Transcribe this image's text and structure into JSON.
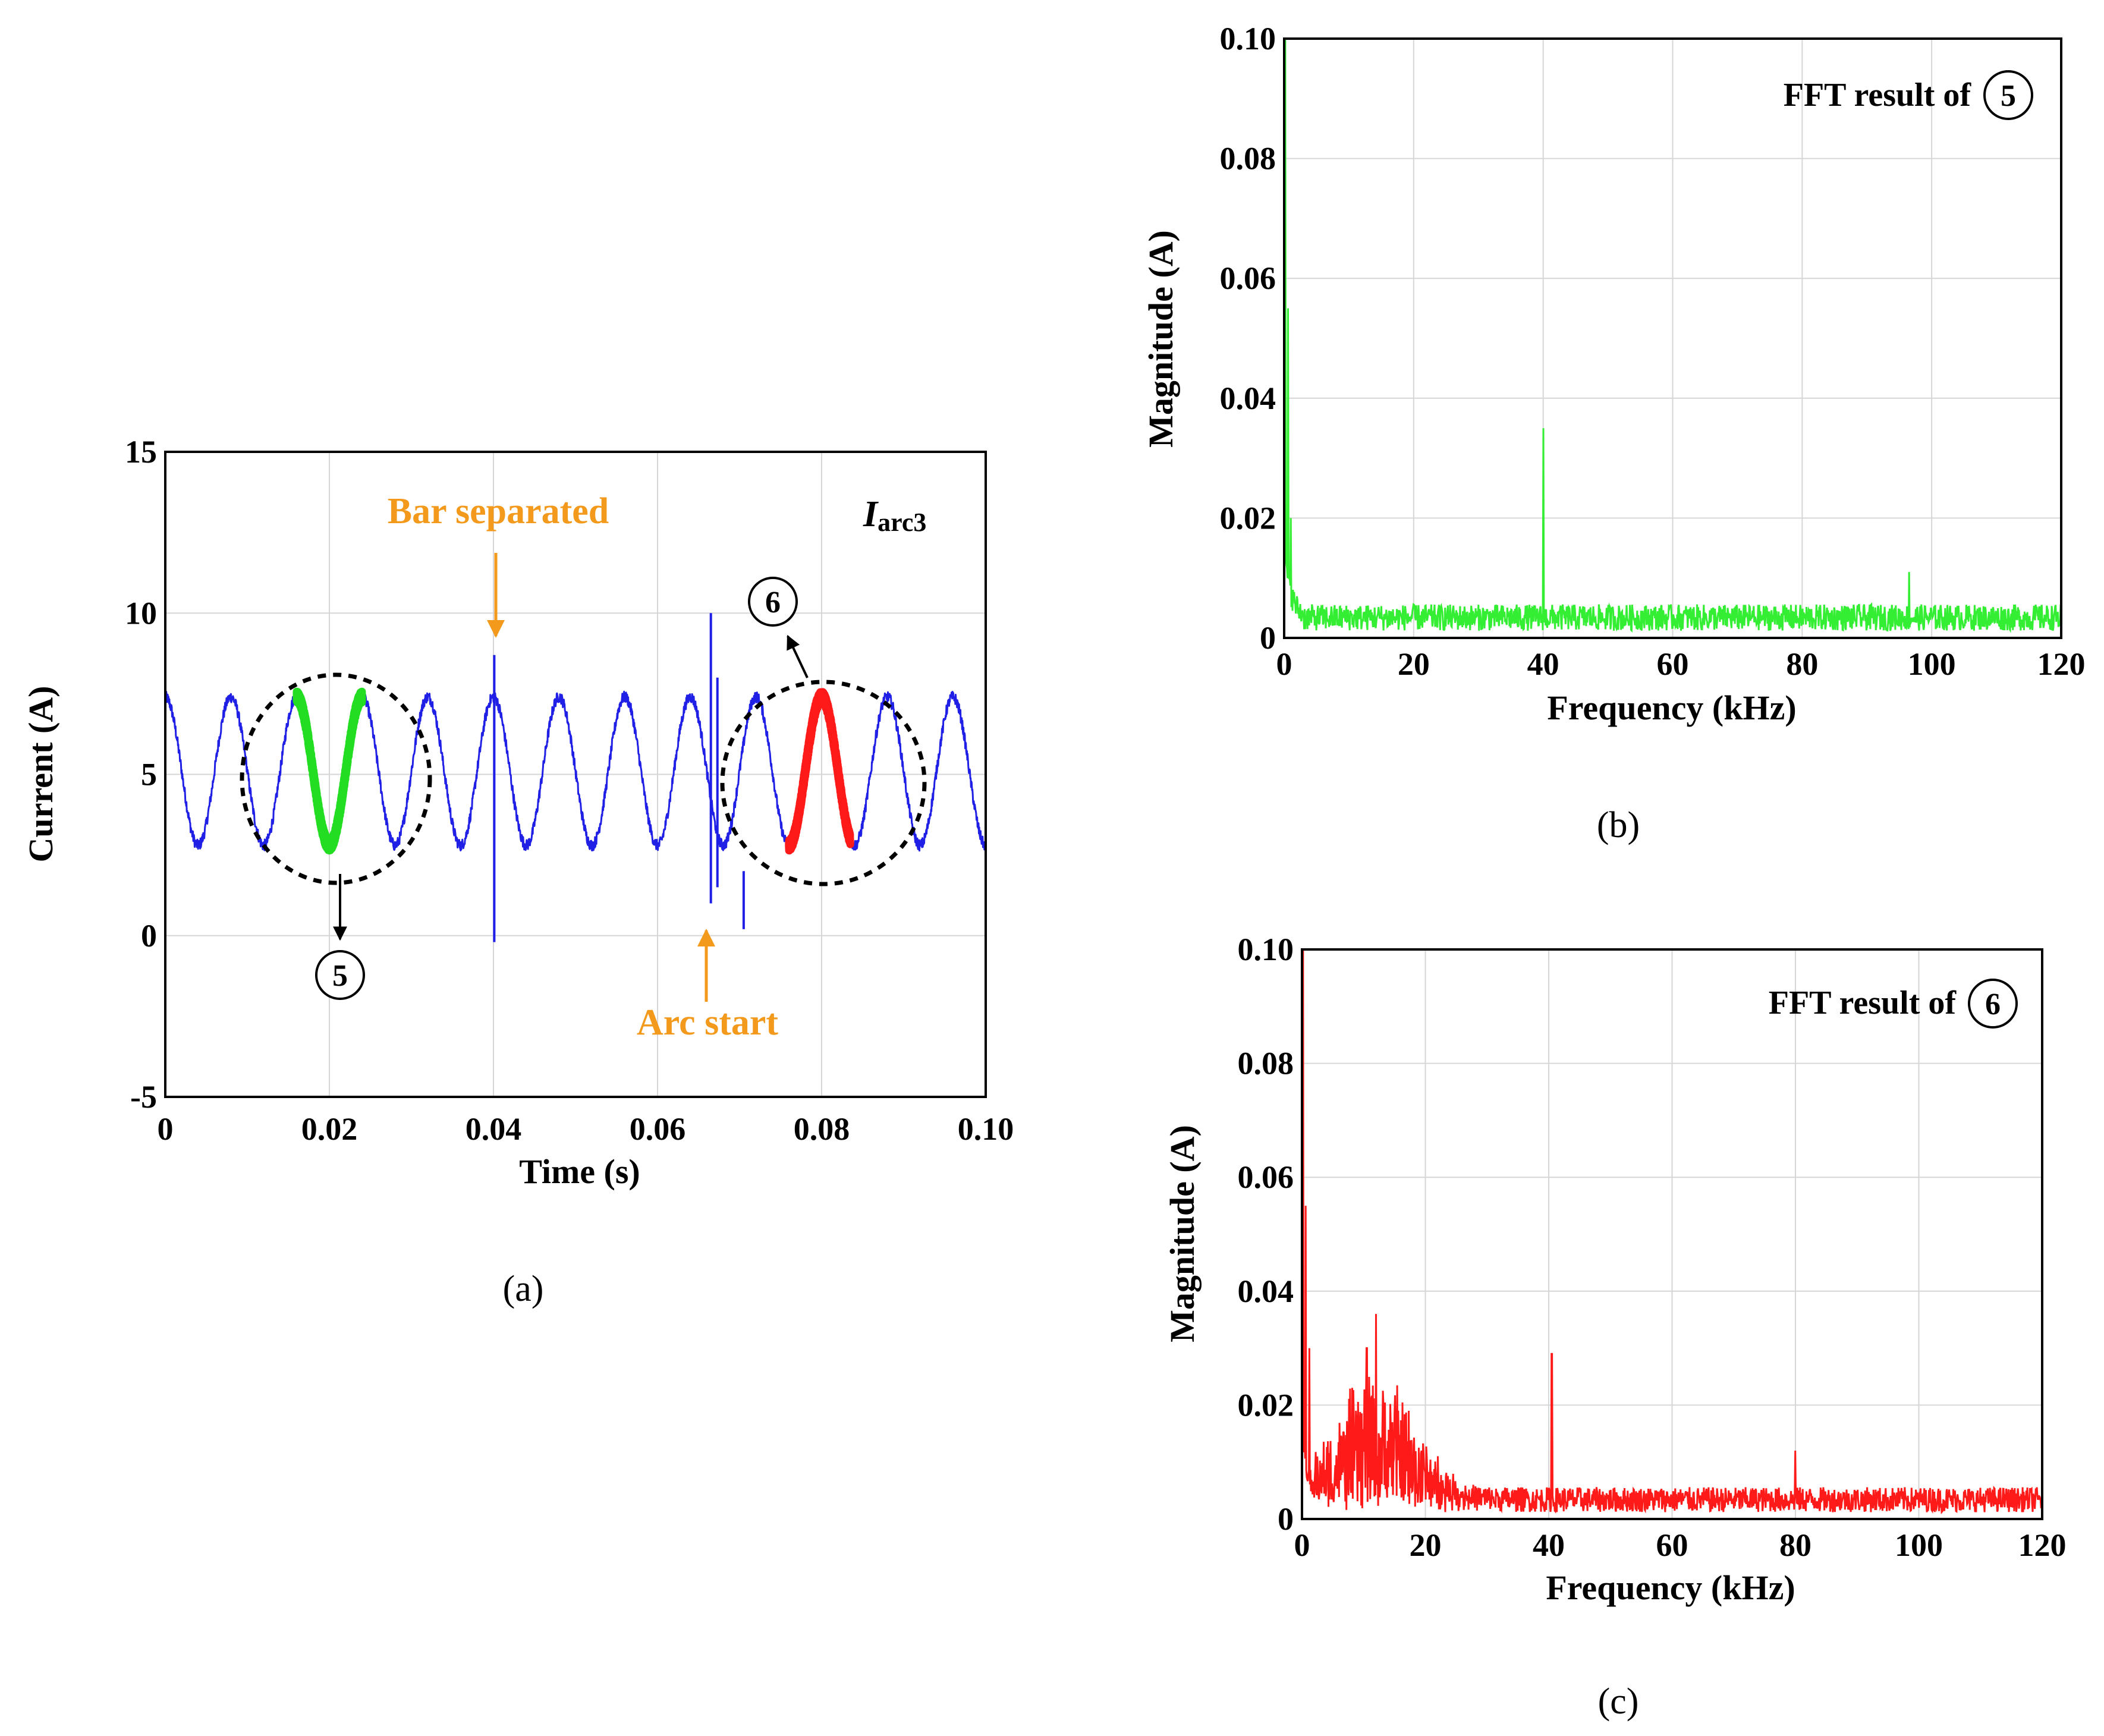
{
  "chart_data": [
    {
      "panel": "(a)",
      "type": "line",
      "title": "",
      "xlabel": "Time (s)",
      "ylabel": "Current (A)",
      "xlim": [
        0,
        0.1
      ],
      "ylim": [
        -5,
        15
      ],
      "xticks": [
        "0",
        "0.02",
        "0.04",
        "0.06",
        "0.08",
        "0.10"
      ],
      "yticks": [
        "-5",
        "0",
        "5",
        "10",
        "15"
      ],
      "grid": true,
      "signal_label": {
        "main": "I",
        "sub": "arc3"
      },
      "signal": {
        "frequency_hz": 125,
        "mean_a": 5.1,
        "amplitude_a": 2.3,
        "peak_times_s": [
          0.0001,
          0.008,
          0.016,
          0.024,
          0.032,
          0.04,
          0.048,
          0.056,
          0.064,
          0.072,
          0.08,
          0.088,
          0.096
        ],
        "spikes": [
          {
            "t": 0.0401,
            "min": -0.2,
            "max": 8.7
          },
          {
            "t": 0.0665,
            "min": 1.0,
            "max": 10.0
          },
          {
            "t": 0.0673,
            "min": 1.5,
            "max": 8.0
          },
          {
            "t": 0.0705,
            "min": 0.2,
            "max": 2.0
          }
        ]
      },
      "series": [
        {
          "name": "Iarc3",
          "color": "#1f1fe6",
          "t_range": [
            0,
            0.1
          ]
        },
        {
          "name": "segment 5",
          "color": "#22dd22",
          "t_range": [
            0.016,
            0.024
          ]
        },
        {
          "name": "segment 6",
          "color": "#ff1a1a",
          "t_range": [
            0.076,
            0.0835
          ]
        }
      ],
      "annotations": [
        {
          "text": "Bar separated",
          "color": "#f39a1d"
        },
        {
          "text": "Arc start",
          "color": "#f39a1d"
        }
      ],
      "markers": [
        "5",
        "6"
      ]
    },
    {
      "panel": "(b)",
      "type": "line",
      "title": "FFT result of",
      "marker": "5",
      "xlabel": "Frequency (kHz)",
      "ylabel": "Magnitude (A)",
      "xlim": [
        0,
        120
      ],
      "ylim": [
        0,
        0.1
      ],
      "xticks": [
        "0",
        "20",
        "40",
        "60",
        "80",
        "100",
        "120"
      ],
      "yticks": [
        "0",
        "0.02",
        "0.04",
        "0.06",
        "0.08",
        "0.10"
      ],
      "grid": true,
      "color": "#33ee33",
      "noise_floor": 0.004,
      "peaks": [
        {
          "f": 0.2,
          "mag": 0.1
        },
        {
          "f": 0.6,
          "mag": 0.055
        },
        {
          "f": 1.0,
          "mag": 0.02
        },
        {
          "f": 40.0,
          "mag": 0.035
        },
        {
          "f": 96.5,
          "mag": 0.011
        }
      ]
    },
    {
      "panel": "(c)",
      "type": "line",
      "title": "FFT result of",
      "marker": "6",
      "xlabel": "Frequency (kHz)",
      "ylabel": "Magnitude (A)",
      "xlim": [
        0,
        120
      ],
      "ylim": [
        0,
        0.1
      ],
      "xticks": [
        "0",
        "20",
        "40",
        "60",
        "80",
        "100",
        "120"
      ],
      "yticks": [
        "0",
        "0.02",
        "0.04",
        "0.06",
        "0.08",
        "0.10"
      ],
      "grid": true,
      "color": "#ff1a1a",
      "noise_floor": 0.004,
      "peaks": [
        {
          "f": 0.2,
          "mag": 0.1
        },
        {
          "f": 0.6,
          "mag": 0.055
        },
        {
          "f": 1.2,
          "mag": 0.03
        },
        {
          "f": 12.0,
          "mag": 0.036
        },
        {
          "f": 10.5,
          "mag": 0.03
        },
        {
          "f": 40.5,
          "mag": 0.029
        },
        {
          "f": 80.0,
          "mag": 0.012
        }
      ]
    }
  ]
}
